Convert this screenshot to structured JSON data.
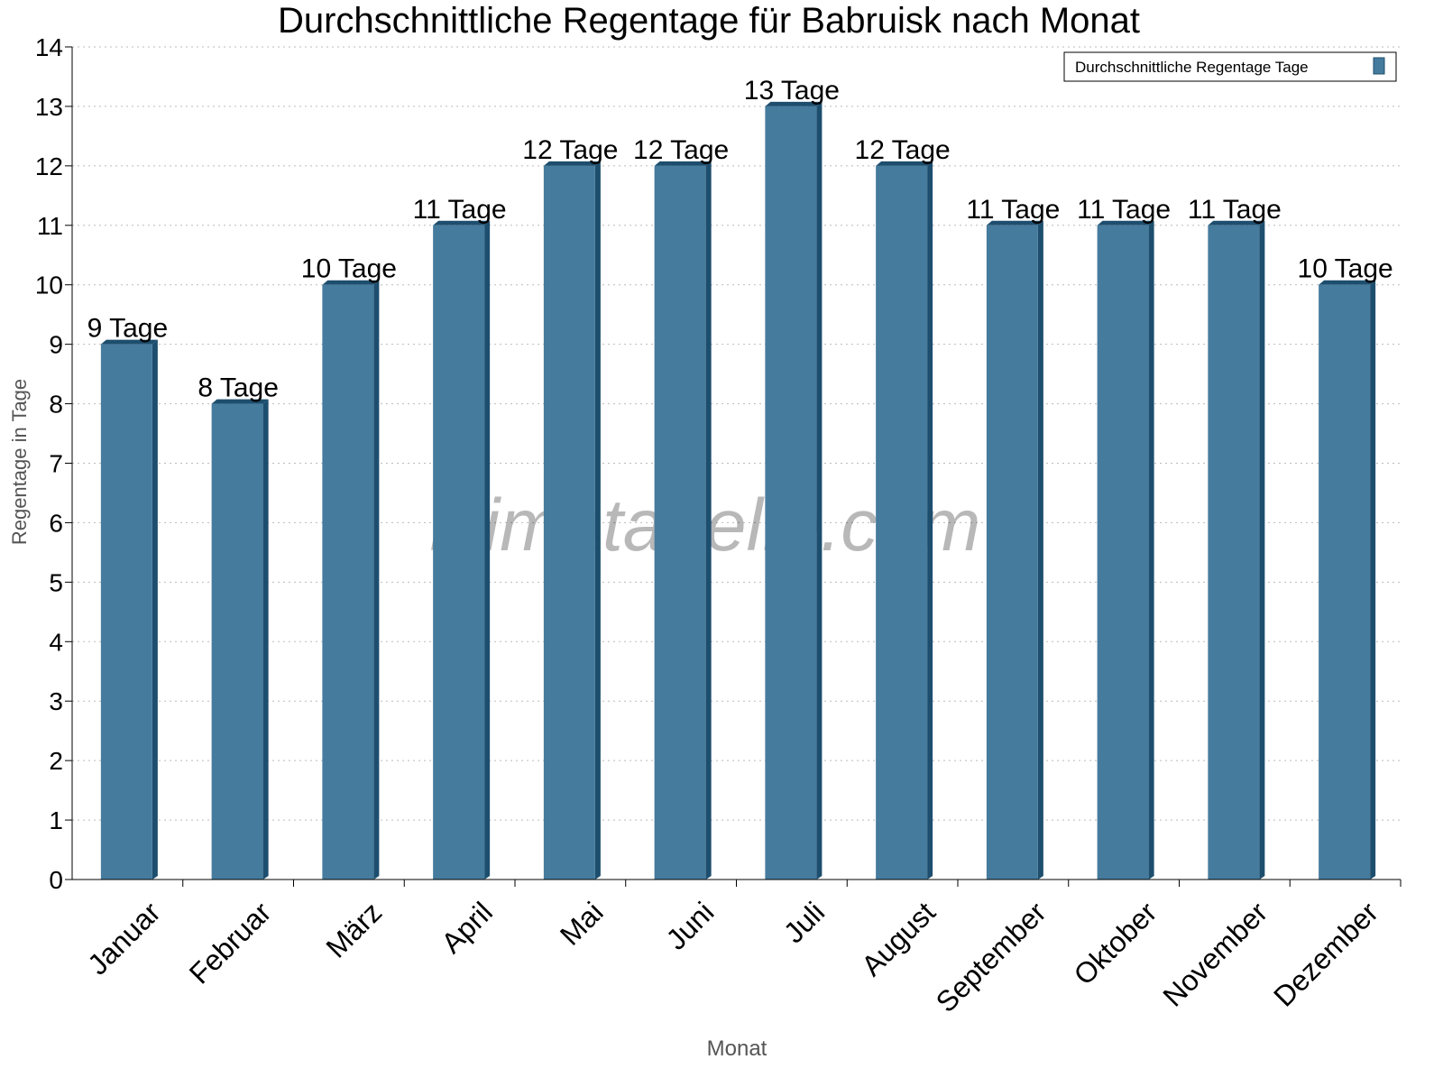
{
  "chart_data": {
    "type": "bar",
    "title": "Durchschnittliche Regentage für Babruisk nach Monat",
    "xlabel": "Monat",
    "ylabel": "Regentage in Tage",
    "ylim": [
      0,
      14
    ],
    "yticks": [
      "0",
      "1",
      "2",
      "3",
      "4",
      "5",
      "6",
      "7",
      "8",
      "9",
      "10",
      "11",
      "12",
      "13",
      "14"
    ],
    "grid": true,
    "legend_position": "top-right",
    "categories": [
      "Januar",
      "Februar",
      "März",
      "April",
      "Mai",
      "Juni",
      "Juli",
      "August",
      "September",
      "Oktober",
      "November",
      "Dezember"
    ],
    "series": [
      {
        "name": "Durchschnittliche Regentage Tage",
        "values": [
          9,
          8,
          10,
          11,
          12,
          12,
          13,
          12,
          11,
          11,
          11,
          10
        ],
        "color": "#457b9d",
        "side_color": "#1d4e6e"
      }
    ],
    "data_labels": [
      "9 Tage",
      "8 Tage",
      "10 Tage",
      "11 Tage",
      "12 Tage",
      "12 Tage",
      "13 Tage",
      "12 Tage",
      "11 Tage",
      "11 Tage",
      "11 Tage",
      "10 Tage"
    ],
    "watermark": "klimatabelle.com"
  }
}
